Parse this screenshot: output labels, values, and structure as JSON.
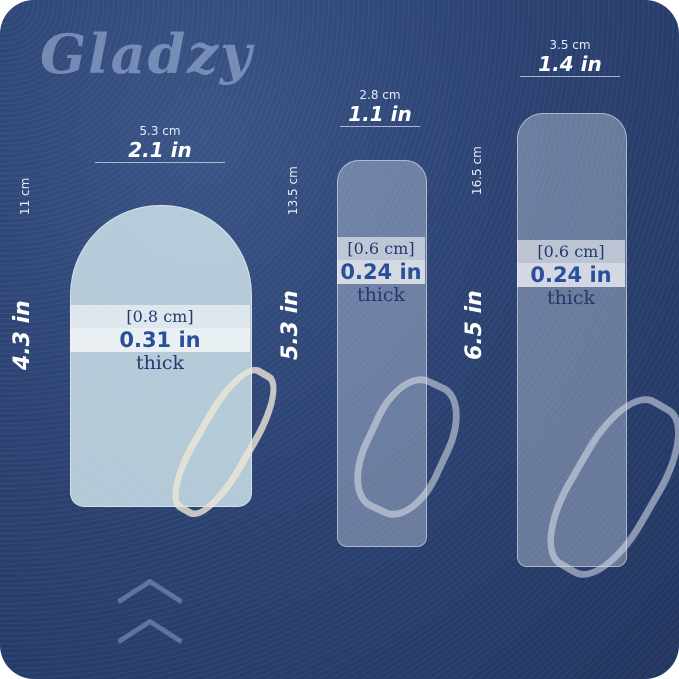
{
  "brand": {
    "logo_text": "Gladzy"
  },
  "items": [
    {
      "width_cm": "5.3 cm",
      "width_in": "2.1 in",
      "height_cm": "11 cm",
      "height_in": "4.3 in",
      "thick_cm": "[0.8 cm]",
      "thick_in": "0.31 in",
      "thick_label": "thick"
    },
    {
      "width_cm": "2.8 cm",
      "width_in": "1.1 in",
      "height_cm": "13.5 cm",
      "height_in": "5.3 in",
      "thick_cm": "[0.6 cm]",
      "thick_in": "0.24 in",
      "thick_label": "thick"
    },
    {
      "width_cm": "3.5 cm",
      "width_in": "1.4 in",
      "height_cm": "16.5 cm",
      "height_in": "6.5 in",
      "thick_cm": "[0.6 cm]",
      "thick_in": "0.24 in",
      "thick_label": "thick"
    }
  ],
  "colors": {
    "background": "#2c4373",
    "accent_text": "#2a4f9a"
  }
}
